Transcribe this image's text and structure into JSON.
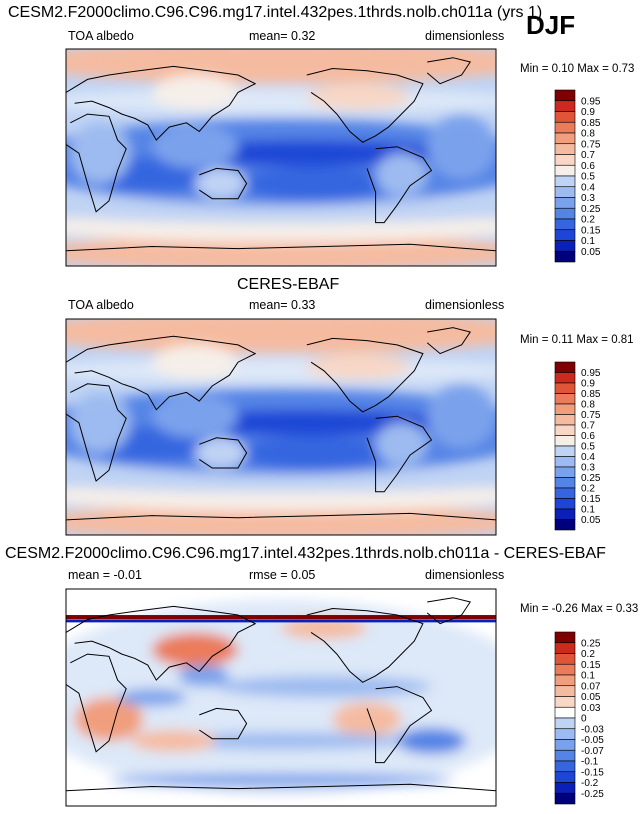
{
  "season": "DJF",
  "colors": {
    "abs_scale": [
      "#00007a",
      "#0a20b8",
      "#1e46d6",
      "#3566e0",
      "#5484e6",
      "#7aa2ec",
      "#9dbbf0",
      "#bfd3f4",
      "#dde8f8",
      "#f6efe9",
      "#f8d7c6",
      "#f5bba0",
      "#f19e7d",
      "#eb7b5b",
      "#e05538",
      "#cc2a1c",
      "#7f0000"
    ],
    "diff_scale": [
      "#00007a",
      "#0a20b8",
      "#1e46d6",
      "#3566e0",
      "#5484e6",
      "#7aa2ec",
      "#9dbbf0",
      "#bfd3f4",
      "#dde8f8",
      "#ffffff",
      "#f8d7c6",
      "#f5bba0",
      "#f19e7d",
      "#eb7b5b",
      "#e05538",
      "#cc2a1c",
      "#7f0000"
    ]
  },
  "panels": [
    {
      "title": "CESM2.F2000climo.C96.C96.mg17.intel.432pes.1thrds.nolb.ch011a (yrs 1)",
      "left_label": "TOA albedo",
      "center_label": "mean=  0.32",
      "right_label": "dimensionless",
      "minmax": "Min =   0.10 Max =   0.73",
      "colorbar_labels": [
        "0.95",
        "0.9",
        "0.85",
        "0.8",
        "0.75",
        "0.7",
        "0.6",
        "0.5",
        "0.4",
        "0.3",
        "0.25",
        "0.2",
        "0.15",
        "0.1",
        "0.05"
      ]
    },
    {
      "title": "CERES-EBAF",
      "left_label": "TOA albedo",
      "center_label": "mean=  0.33",
      "right_label": "dimensionless",
      "minmax": "Min =   0.11 Max =   0.81",
      "colorbar_labels": [
        "0.95",
        "0.9",
        "0.85",
        "0.8",
        "0.75",
        "0.7",
        "0.6",
        "0.5",
        "0.4",
        "0.3",
        "0.25",
        "0.2",
        "0.15",
        "0.1",
        "0.05"
      ]
    },
    {
      "title": "CESM2.F2000climo.C96.C96.mg17.intel.432pes.1thrds.nolb.ch011a - CERES-EBAF",
      "left_label": "mean =  -0.01",
      "center_label": "rmse =   0.05",
      "right_label": "dimensionless",
      "minmax": "Min =  -0.26 Max =   0.33",
      "colorbar_labels": [
        "0.25",
        "0.2",
        "0.15",
        "0.1",
        "0.07",
        "0.05",
        "0.03",
        "0",
        "-0.03",
        "-0.05",
        "-0.07",
        "-0.1",
        "-0.15",
        "-0.2",
        "-0.25"
      ]
    }
  ],
  "chart_data": [
    {
      "type": "heatmap",
      "title": "CESM2.F2000climo.C96.C96.mg17.intel.432pes.1thrds.nolb.ch011a (yrs 1)",
      "variable": "TOA albedo",
      "units": "dimensionless",
      "mean": 0.32,
      "min": 0.1,
      "max": 0.73,
      "levels": [
        0.05,
        0.1,
        0.15,
        0.2,
        0.25,
        0.3,
        0.4,
        0.5,
        0.6,
        0.7,
        0.75,
        0.8,
        0.85,
        0.9,
        0.95
      ],
      "colorbar": "blue-white-red"
    },
    {
      "type": "heatmap",
      "title": "CERES-EBAF",
      "variable": "TOA albedo",
      "units": "dimensionless",
      "mean": 0.33,
      "min": 0.11,
      "max": 0.81,
      "levels": [
        0.05,
        0.1,
        0.15,
        0.2,
        0.25,
        0.3,
        0.4,
        0.5,
        0.6,
        0.7,
        0.75,
        0.8,
        0.85,
        0.9,
        0.95
      ],
      "colorbar": "blue-white-red"
    },
    {
      "type": "heatmap",
      "title": "CESM2.F2000climo.C96.C96.mg17.intel.432pes.1thrds.nolb.ch011a - CERES-EBAF",
      "units": "dimensionless",
      "mean": -0.01,
      "rmse": 0.05,
      "min": -0.26,
      "max": 0.33,
      "levels": [
        -0.25,
        -0.2,
        -0.15,
        -0.1,
        -0.07,
        -0.05,
        -0.03,
        0,
        0.03,
        0.05,
        0.07,
        0.1,
        0.15,
        0.2,
        0.25
      ],
      "colorbar": "blue-white-red"
    }
  ]
}
